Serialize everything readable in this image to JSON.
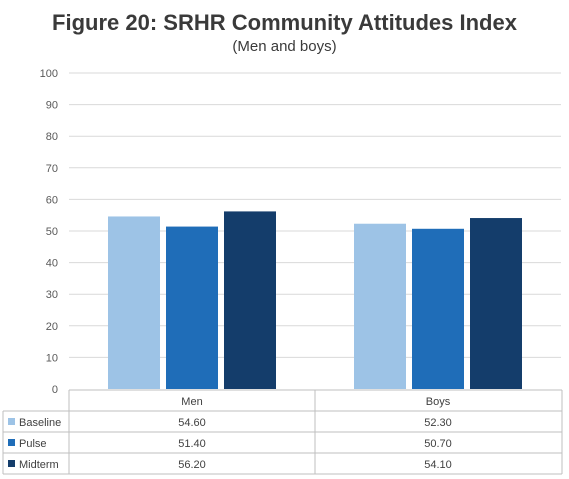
{
  "chart_data": {
    "type": "bar",
    "title": "Figure 20: SRHR Community Attitudes Index",
    "subtitle": "(Men and boys)",
    "categories": [
      "Men",
      "Boys"
    ],
    "series": [
      {
        "name": "Baseline",
        "values": [
          54.6,
          52.3
        ],
        "labels": [
          "54.60",
          "52.30"
        ],
        "color": "#9dc3e6"
      },
      {
        "name": "Pulse",
        "values": [
          51.4,
          50.7
        ],
        "labels": [
          "51.40",
          "50.70"
        ],
        "color": "#1f6db8"
      },
      {
        "name": "Midterm",
        "values": [
          56.2,
          54.1
        ],
        "labels": [
          "56.20",
          "54.10"
        ],
        "color": "#143d6b"
      }
    ],
    "ylim": [
      0,
      100
    ],
    "yticks": [
      "0",
      "10",
      "20",
      "30",
      "40",
      "50",
      "60",
      "70",
      "80",
      "90",
      "100"
    ],
    "grid": true,
    "legend": "data-table",
    "xlabel": "",
    "ylabel": ""
  }
}
